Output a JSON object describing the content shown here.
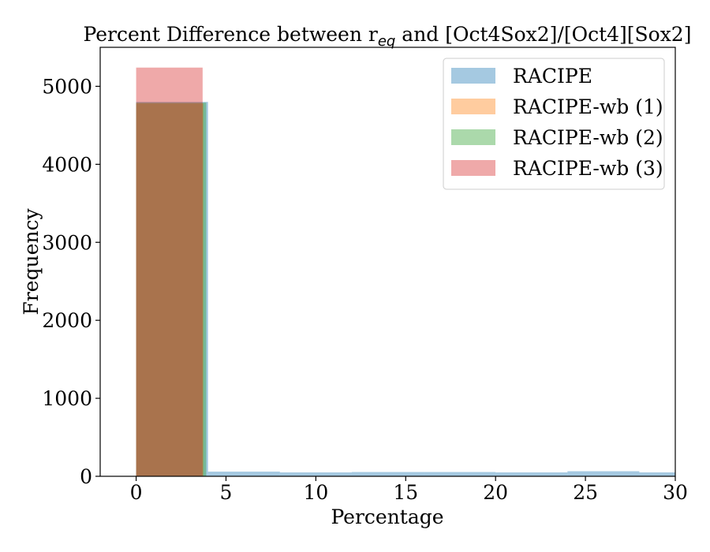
{
  "chart_data": {
    "type": "bar",
    "title_main": "Percent Difference between r",
    "title_sub": "eq",
    "title_rest": "  and [Oct4Sox2]/[Oct4][Sox2]",
    "xlabel": "Percentage",
    "ylabel": "Frequency",
    "xlim": [
      -2,
      30
    ],
    "ylim": [
      0,
      5500
    ],
    "xticks": [
      0,
      5,
      10,
      15,
      20,
      25,
      30
    ],
    "yticks": [
      0,
      1000,
      2000,
      3000,
      4000,
      5000
    ],
    "grid": false,
    "legend_position": "top-right",
    "series": [
      {
        "name": "RACIPE",
        "color": "#1f77b4",
        "bins": [
          {
            "x0": 0,
            "x1": 4,
            "value": 4800
          },
          {
            "x0": 4,
            "x1": 8,
            "value": 60
          },
          {
            "x0": 8,
            "x1": 12,
            "value": 50
          },
          {
            "x0": 12,
            "x1": 16,
            "value": 55
          },
          {
            "x0": 16,
            "x1": 20,
            "value": 55
          },
          {
            "x0": 20,
            "x1": 24,
            "value": 50
          },
          {
            "x0": 24,
            "x1": 28,
            "value": 65
          },
          {
            "x0": 28,
            "x1": 32,
            "value": 50
          }
        ]
      },
      {
        "name": "RACIPE-wb (1)",
        "color": "#ff7f0e",
        "bins": [
          {
            "x0": 0,
            "x1": 3.75,
            "value": 4780
          }
        ]
      },
      {
        "name": "RACIPE-wb (2)",
        "color": "#2ca02c",
        "bins": [
          {
            "x0": 0,
            "x1": 3.9,
            "value": 4790
          }
        ]
      },
      {
        "name": "RACIPE-wb (3)",
        "color": "#d62728",
        "bins": [
          {
            "x0": 0,
            "x1": 3.7,
            "value": 5240
          }
        ]
      }
    ]
  }
}
